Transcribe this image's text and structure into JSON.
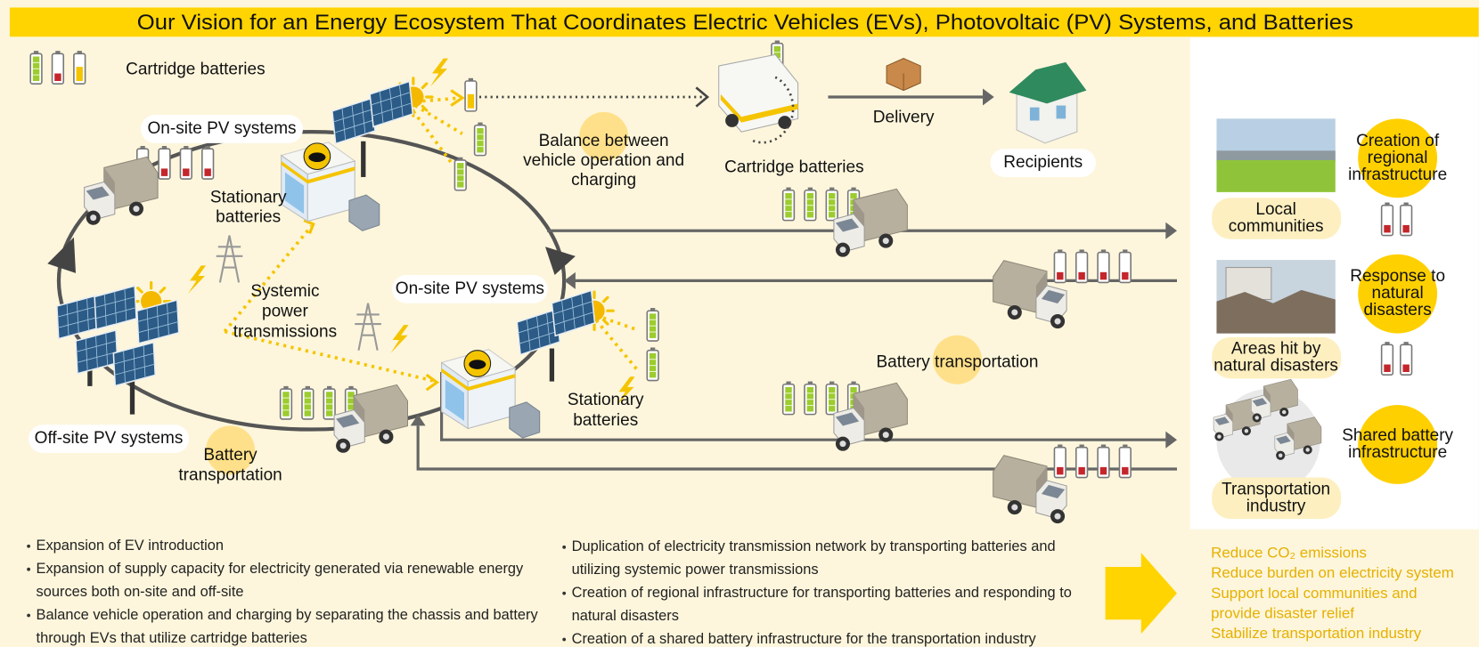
{
  "title": "Our Vision for an Energy Ecosystem That Coordinates Electric Vehicles (EVs), Photovoltaic (PV) Systems, and Batteries",
  "legend": {
    "label": "Cartridge batteries"
  },
  "labels": [
    {
      "lines": [
        "On-site PV systems"
      ]
    },
    {
      "lines": [
        "Stationary",
        "batteries"
      ]
    },
    {
      "lines": [
        "Systemic",
        "power",
        "transmissions"
      ]
    },
    {
      "lines": [
        "On-site PV systems"
      ]
    },
    {
      "lines": [
        "Off-site PV systems"
      ]
    },
    {
      "lines": [
        "Battery",
        "transportation"
      ]
    },
    {
      "lines": [
        "Stationary",
        "batteries"
      ]
    },
    {
      "lines": [
        "Balance between",
        "vehicle operation and",
        "charging"
      ]
    },
    {
      "lines": [
        "Cartridge batteries"
      ]
    },
    {
      "lines": [
        "Delivery"
      ]
    },
    {
      "lines": [
        "Recipients"
      ]
    },
    {
      "lines": [
        "Battery transportation"
      ]
    }
  ],
  "panel": [
    {
      "image_label": [
        "Local",
        "communities"
      ],
      "benefit": [
        "Creation of",
        "regional",
        "infrastructure"
      ]
    },
    {
      "image_label": [
        "Areas hit by",
        "natural disasters"
      ],
      "benefit": [
        "Response to",
        "natural",
        "disasters"
      ]
    },
    {
      "image_label": [
        "Transportation",
        "industry"
      ],
      "benefit": [
        "Shared battery",
        "infrastructure"
      ]
    }
  ],
  "bullets": {
    "left": [
      [
        "Expansion of EV introduction"
      ],
      [
        "Expansion of supply capacity for electricity generated via renewable energy",
        "sources both on-site and off-site"
      ],
      [
        "Balance vehicle operation and charging by separating the chassis and battery",
        "through EVs that utilize cartridge batteries"
      ]
    ],
    "right": [
      [
        "Duplication of electricity transmission network by transporting batteries and",
        "utilizing systemic power transmissions"
      ],
      [
        "Creation of regional infrastructure for transporting batteries and responding to",
        "natural disasters"
      ],
      [
        "Creation of a shared battery infrastructure for the transportation industry"
      ]
    ]
  },
  "outcomes": [
    [
      "Reduce CO₂ emissions"
    ],
    [
      "Reduce burden on electricity system"
    ],
    [
      "Support local communities and",
      "provide disaster relief"
    ],
    [
      "Stabilize transportation industry"
    ]
  ]
}
